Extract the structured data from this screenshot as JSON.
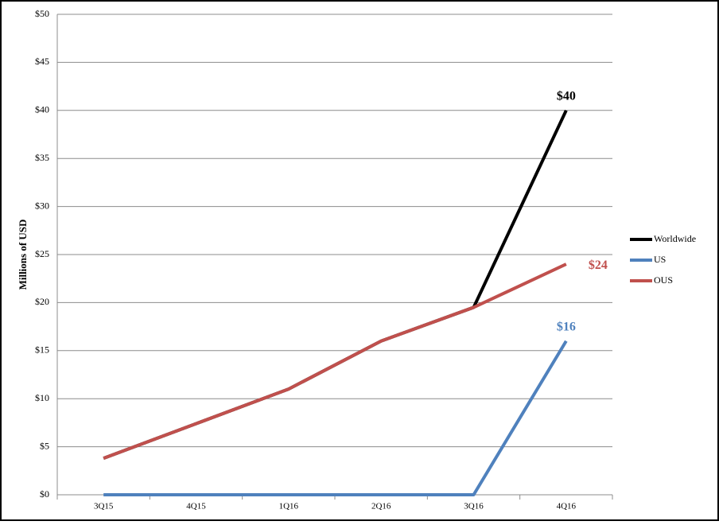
{
  "chart_data": {
    "type": "line",
    "y_label": "Millions of USD",
    "categories": [
      "3Q15",
      "4Q15",
      "1Q16",
      "2Q16",
      "3Q16",
      "4Q16"
    ],
    "series": [
      {
        "name": "Worldwide",
        "color": "#000000",
        "values": [
          3.8,
          7.4,
          11,
          16,
          19.5,
          40
        ],
        "value_labels": [
          null,
          null,
          null,
          null,
          null,
          "$40"
        ]
      },
      {
        "name": "US",
        "color": "#4f81bd",
        "values": [
          0,
          0,
          0,
          0,
          0,
          16
        ],
        "value_labels": [
          null,
          null,
          null,
          null,
          null,
          "$16"
        ]
      },
      {
        "name": "OUS",
        "color": "#c0504d",
        "values": [
          3.8,
          7.4,
          11,
          16,
          19.5,
          24
        ],
        "value_labels": [
          null,
          null,
          null,
          null,
          null,
          "$24"
        ]
      }
    ],
    "ylim": [
      0,
      50
    ],
    "yticks": [
      {
        "value": 0,
        "label": "$0"
      },
      {
        "value": 5,
        "label": "$5"
      },
      {
        "value": 10,
        "label": "$10"
      },
      {
        "value": 15,
        "label": "$15"
      },
      {
        "value": 20,
        "label": "$20"
      },
      {
        "value": 25,
        "label": "$25"
      },
      {
        "value": 30,
        "label": "$30"
      },
      {
        "value": 35,
        "label": "$35"
      },
      {
        "value": 40,
        "label": "$40"
      },
      {
        "value": 45,
        "label": "$45"
      },
      {
        "value": 50,
        "label": "$50"
      }
    ],
    "grid": true,
    "legend": "right"
  }
}
